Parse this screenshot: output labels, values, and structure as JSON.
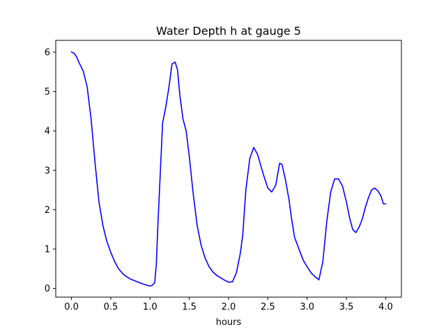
{
  "chart_data": {
    "type": "line",
    "title": "Water Depth h at gauge 5",
    "xlabel": "hours",
    "ylabel": "",
    "xlim": [
      -0.2,
      4.2
    ],
    "ylim": [
      -0.22,
      6.3
    ],
    "xticks": [
      0.0,
      0.5,
      1.0,
      1.5,
      2.0,
      2.5,
      3.0,
      3.5,
      4.0
    ],
    "xtick_labels": [
      "0.0",
      "0.5",
      "1.0",
      "1.5",
      "2.0",
      "2.5",
      "3.0",
      "3.5",
      "4.0"
    ],
    "yticks": [
      0,
      1,
      2,
      3,
      4,
      5,
      6
    ],
    "ytick_labels": [
      "0",
      "1",
      "2",
      "3",
      "4",
      "5",
      "6"
    ],
    "grid": false,
    "series": [
      {
        "color": "#0000ff",
        "x": [
          0.0,
          0.03,
          0.06,
          0.1,
          0.15,
          0.2,
          0.25,
          0.3,
          0.35,
          0.4,
          0.45,
          0.5,
          0.55,
          0.6,
          0.65,
          0.7,
          0.75,
          0.8,
          0.85,
          0.9,
          0.95,
          1.0,
          1.03,
          1.06,
          1.08,
          1.1,
          1.13,
          1.16,
          1.2,
          1.24,
          1.28,
          1.32,
          1.35,
          1.38,
          1.42,
          1.46,
          1.5,
          1.55,
          1.6,
          1.65,
          1.7,
          1.75,
          1.8,
          1.85,
          1.9,
          1.95,
          2.0,
          2.05,
          2.1,
          2.15,
          2.18,
          2.22,
          2.27,
          2.32,
          2.37,
          2.42,
          2.45,
          2.5,
          2.55,
          2.6,
          2.65,
          2.68,
          2.72,
          2.77,
          2.8,
          2.84,
          2.9,
          2.95,
          3.0,
          3.05,
          3.1,
          3.15,
          3.2,
          3.25,
          3.3,
          3.35,
          3.4,
          3.45,
          3.5,
          3.54,
          3.58,
          3.62,
          3.66,
          3.7,
          3.74,
          3.78,
          3.82,
          3.86,
          3.9,
          3.94,
          3.97,
          4.0
        ],
        "y": [
          6.0,
          5.98,
          5.9,
          5.72,
          5.52,
          5.12,
          4.3,
          3.2,
          2.2,
          1.6,
          1.2,
          0.92,
          0.68,
          0.5,
          0.38,
          0.3,
          0.24,
          0.2,
          0.16,
          0.12,
          0.09,
          0.06,
          0.08,
          0.15,
          0.6,
          1.6,
          2.9,
          4.2,
          4.6,
          5.1,
          5.7,
          5.75,
          5.55,
          4.9,
          4.3,
          4.0,
          3.35,
          2.4,
          1.6,
          1.1,
          0.78,
          0.56,
          0.42,
          0.33,
          0.27,
          0.21,
          0.16,
          0.17,
          0.4,
          0.9,
          1.35,
          2.5,
          3.3,
          3.58,
          3.4,
          3.05,
          2.85,
          2.55,
          2.45,
          2.62,
          3.18,
          3.15,
          2.8,
          2.25,
          1.8,
          1.3,
          0.98,
          0.72,
          0.55,
          0.4,
          0.3,
          0.22,
          0.68,
          1.7,
          2.45,
          2.78,
          2.78,
          2.6,
          2.2,
          1.8,
          1.5,
          1.42,
          1.55,
          1.75,
          2.05,
          2.3,
          2.5,
          2.55,
          2.48,
          2.35,
          2.15,
          2.15
        ]
      }
    ]
  }
}
